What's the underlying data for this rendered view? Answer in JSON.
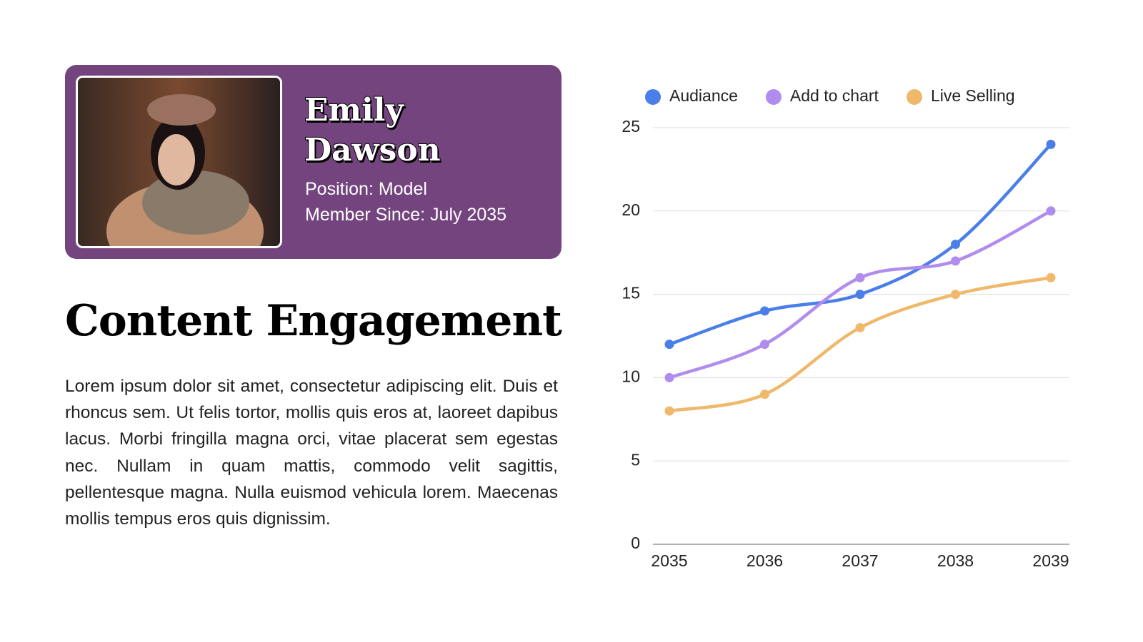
{
  "profile": {
    "name": "Emily Dawson",
    "position": "Position: Model",
    "member_since": "Member Since: July 2035"
  },
  "heading": "Content Engagement",
  "body": "Lorem ipsum dolor sit amet, consectetur adipiscing elit. Duis et rhoncus sem. Ut felis tortor, mollis quis eros at, laoreet dapibus lacus. Morbi fringilla magna orci, vitae placerat sem egestas nec. Nullam in quam mattis, commodo velit sagittis, pellentesque magna. Nulla euismod vehicula lorem. Maecenas mollis tempus eros quis dignissim.",
  "chart_data": {
    "type": "line",
    "categories": [
      "2035",
      "2036",
      "2037",
      "2038",
      "2039"
    ],
    "series": [
      {
        "name": "Audiance",
        "color": "#4a7ee8",
        "values": [
          12,
          14,
          15,
          18,
          24
        ]
      },
      {
        "name": "Add to chart",
        "color": "#b18cef",
        "values": [
          10,
          12,
          16,
          17,
          20
        ]
      },
      {
        "name": "Live Selling",
        "color": "#efb86b",
        "values": [
          8,
          9,
          13,
          15,
          16
        ]
      }
    ],
    "ylim": [
      0,
      25
    ],
    "yticks": [
      0,
      5,
      10,
      15,
      20,
      25
    ],
    "grid": true,
    "smooth": true,
    "legend": "top"
  }
}
